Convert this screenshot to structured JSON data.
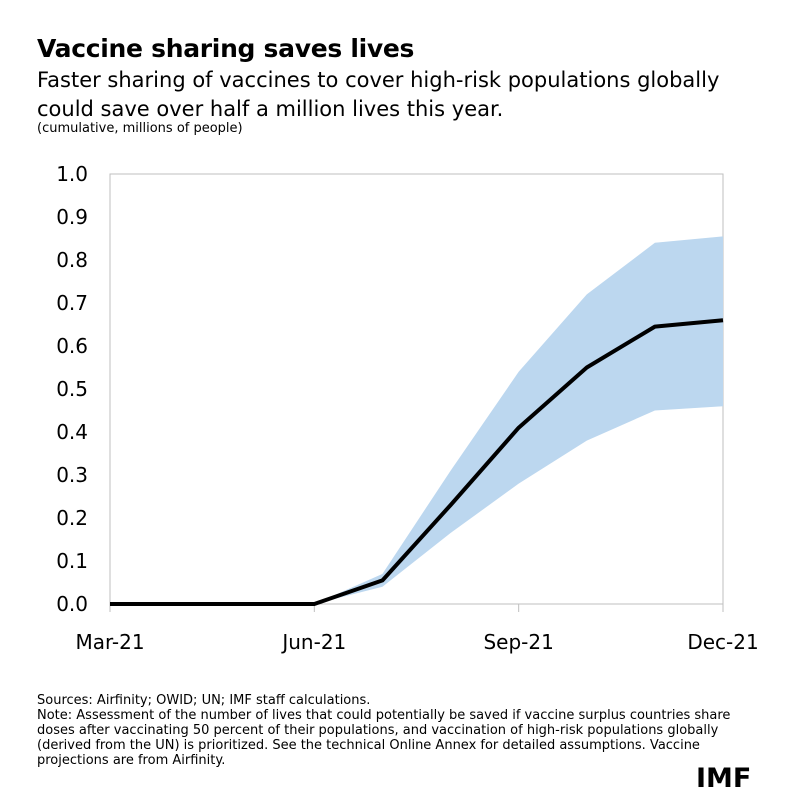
{
  "header": {
    "title": "Vaccine sharing saves lives",
    "subtitle": "Faster sharing of vaccines to cover high-risk populations globally could save over half a million lives this year.",
    "unit": "(cumulative, millions of people)"
  },
  "chart_data": {
    "type": "line",
    "title": "",
    "xlabel": "",
    "ylabel": "",
    "x_ticks": [
      "Mar-21",
      "Jun-21",
      "Sep-21",
      "Dec-21"
    ],
    "ylim": [
      0,
      1.0
    ],
    "y_ticks": [
      "0.0",
      "0.1",
      "0.2",
      "0.3",
      "0.4",
      "0.5",
      "0.6",
      "0.7",
      "0.8",
      "0.9",
      "1.0"
    ],
    "grid": false,
    "x": [
      "Mar-21",
      "Apr-21",
      "May-21",
      "Jun-21",
      "Jul-21",
      "Aug-21",
      "Sep-21",
      "Oct-21",
      "Nov-21",
      "Dec-21"
    ],
    "series": [
      {
        "values": [
          0,
          0,
          0,
          0,
          0.055,
          0.23,
          0.41,
          0.55,
          0.645,
          0.66
        ]
      }
    ],
    "band": {
      "lower": [
        0,
        0,
        0,
        0,
        0.04,
        0.165,
        0.28,
        0.38,
        0.45,
        0.46
      ],
      "upper": [
        0,
        0,
        0,
        0,
        0.07,
        0.31,
        0.54,
        0.72,
        0.84,
        0.855
      ]
    },
    "colors": {
      "line": "#000000",
      "band": "#bcd7ef",
      "axis": "#bfbfbf"
    }
  },
  "footer": {
    "sources": "Sources: Airfinity; OWID; UN; IMF staff calculations.",
    "note": "Note: Assessment of the number of lives that could potentially be saved if vaccine surplus countries share doses after vaccinating 50 percent of their populations, and vaccination of high-risk populations globally (derived from the UN) is prioritized. See the technical Online Annex for detailed assumptions. Vaccine projections are from Airfinity.",
    "logo": "IMF"
  }
}
